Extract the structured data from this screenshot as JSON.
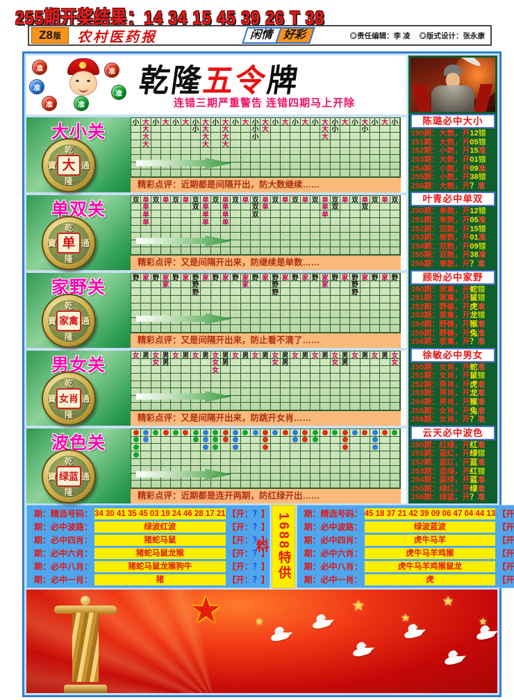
{
  "palette": {
    "red_chars": "大单家女",
    "dot_red": "#e03010",
    "dot_green": "#12a830",
    "dot_blue": "#2f7de0",
    "accent_blue": "#2f7fd0",
    "accent_orange": "#f9ba7c"
  },
  "top": {
    "result": "255期开奖结果：14 34 15 45 39 26 T 38"
  },
  "masthead": {
    "edition": "Z8",
    "edition_suffix": "版",
    "paper": "农村医药报",
    "ribbon_a": "闲情",
    "ribbon_b": "好彩",
    "credit1": "◎责任编辑：李 凌",
    "credit2": "◎版式设计：张永康"
  },
  "title": {
    "part1": "乾隆",
    "part2": "五令",
    "part3": "牌",
    "warning": "连错三期严重警告 连错四期马上开除",
    "ball": "准"
  },
  "coin": {
    "ring": [
      "乾",
      "寶",
      "通",
      "隆"
    ]
  },
  "sections": [
    {
      "title": "大小关",
      "coin": "大",
      "kind": "chars",
      "comment": "精彩点评：近期都是间隔开出，防大数继续……",
      "marks": [
        [
          "小",
          "大",
          "小",
          "大",
          "小",
          "大",
          "小",
          "大",
          "小",
          "大",
          "小",
          "大",
          "小",
          "大",
          "小",
          "大",
          "小",
          "大",
          "小",
          "大",
          "小",
          "大",
          "小",
          "大",
          "小",
          "大",
          "小"
        ],
        {
          "2": "大",
          "7": "小",
          "8": "大",
          "10": "大",
          "13": "小",
          "14": "大",
          "20": "大",
          "21": "小",
          "24": "小"
        },
        {
          "2": "大",
          "8": "大",
          "10": "大",
          "13": "小",
          "20": "大"
        },
        {
          "2": "大",
          "8": "大",
          "10": "大"
        }
      ]
    },
    {
      "title": "单双关",
      "coin": "单",
      "kind": "chars",
      "comment": "精彩点评：又是间隔开出来，防继续是单数……",
      "marks": [
        [
          "双",
          "单",
          "双",
          "单",
          "双",
          "单",
          "双",
          "单",
          "双",
          "单",
          "双",
          "单",
          "双",
          "单",
          "双",
          "单",
          "双",
          "单",
          "双",
          "单",
          "双",
          "单",
          "双",
          "单",
          "双",
          "单",
          "双"
        ],
        {
          "2": "单",
          "7": "双",
          "8": "单",
          "10": "单",
          "13": "双",
          "14": "单",
          "20": "单",
          "21": "双",
          "24": "双"
        },
        {
          "2": "单",
          "8": "单",
          "10": "单",
          "13": "双",
          "20": "单"
        },
        {
          "2": "单",
          "8": "单",
          "10": "单"
        }
      ]
    },
    {
      "title": "家野关",
      "coin": "家禽",
      "kind": "chars",
      "comment": "精彩点评：又是间隔开出来，防止看不清了……",
      "marks": [
        [
          "野",
          "家",
          "野",
          "家",
          "野",
          "家",
          "野",
          "家",
          "野",
          "家",
          "野",
          "家",
          "野",
          "家",
          "野",
          "家",
          "野",
          "家",
          "野",
          "家",
          "野",
          "家",
          "野",
          "家",
          "野",
          "家",
          "野"
        ],
        {
          "4": "家",
          "7": "野",
          "12": "家",
          "15": "野",
          "20": "家",
          "23": "野"
        },
        {
          "7": "野",
          "15": "野",
          "23": "野"
        }
      ]
    },
    {
      "title": "男女关",
      "coin": "女肖",
      "kind": "chars",
      "comment": "精彩点评：又是间隔开出来，防跳开女肖……",
      "marks": [
        [
          "女",
          "男",
          "女",
          "男",
          "女",
          "男",
          "女",
          "男",
          "女",
          "男",
          "女",
          "男",
          "女",
          "男",
          "女",
          "男",
          "女",
          "男",
          "女",
          "男",
          "女",
          "男",
          "女",
          "男",
          "女",
          "男",
          "女"
        ],
        {
          "3": "女",
          "4": "男",
          "9": "女",
          "10": "男",
          "15": "女",
          "16": "男",
          "21": "女",
          "22": "男",
          "27": "女"
        },
        {
          "9": "女"
        }
      ]
    },
    {
      "title": "波色关",
      "coin": "绿蓝",
      "kind": "dots",
      "comment": "精彩点评：近期都是连开两期，防红绿开出……",
      "marks": [
        [
          "R",
          "B",
          "G",
          "R",
          "G",
          "R",
          "G",
          "B",
          "G",
          "R",
          "B",
          "G",
          "B",
          "R",
          "B",
          "R",
          "B",
          "R",
          "G",
          "R",
          "G",
          "R",
          "B",
          "R",
          "B",
          "R",
          "G"
        ],
        {
          "1": "G",
          "2": "B",
          "7": "G",
          "8": "B",
          "9": "G",
          "10": "R",
          "11": "B",
          "14": "R",
          "17": "B",
          "18": "R",
          "19": "G",
          "22": "R",
          "25": "B"
        },
        {
          "1": "G",
          "8": "B",
          "9": "G",
          "11": "B",
          "14": "R",
          "22": "R",
          "25": "B"
        },
        {
          "1": "G"
        }
      ]
    }
  ],
  "sidebar": {
    "panels": [
      {
        "header": "陈璐必中大小",
        "rows": [
          {
            "pre": "250期：大数，开",
            "val": "12",
            "verdict": "错"
          },
          {
            "pre": "251期：大数，开",
            "val": "05",
            "verdict": "错"
          },
          {
            "pre": "252期：小数，开",
            "val": "15",
            "verdict": "准"
          },
          {
            "pre": "253期：大数，开",
            "val": "01",
            "verdict": "错"
          },
          {
            "pre": "254期：小数，开",
            "val": "09",
            "verdict": "准"
          },
          {
            "pre": "255期：小数，开",
            "val": "38",
            "verdict": "错"
          },
          {
            "pre": "256期：大数，开",
            "val": "？",
            "verdict": "准"
          }
        ]
      },
      {
        "header": "叶青必中单双",
        "rows": [
          {
            "pre": "250期：单数，开",
            "val": "12",
            "verdict": "错"
          },
          {
            "pre": "251期：单数，开",
            "val": "05",
            "verdict": "准"
          },
          {
            "pre": "252期：双数，开",
            "val": "15",
            "verdict": "错"
          },
          {
            "pre": "253期：单数，开",
            "val": "01",
            "verdict": "准"
          },
          {
            "pre": "254期：双数，开",
            "val": "09",
            "verdict": "错"
          },
          {
            "pre": "255期：双数，开",
            "val": "38",
            "verdict": "准"
          },
          {
            "pre": "256期：单数，开",
            "val": "？",
            "verdict": "准"
          }
        ]
      },
      {
        "header": "顾盼必中家野",
        "rows": [
          {
            "pre": "250期：家禽，开",
            "val": "蛇",
            "verdict": "错"
          },
          {
            "pre": "251期：家禽，开",
            "val": "鼠",
            "verdict": "错"
          },
          {
            "pre": "252期：野兽，开",
            "val": "虎",
            "verdict": "准"
          },
          {
            "pre": "253期：家禽，开",
            "val": "龙",
            "verdict": "错"
          },
          {
            "pre": "254期：野兽，开",
            "val": "猴",
            "verdict": "准"
          },
          {
            "pre": "255期：野兽，开",
            "val": "兔",
            "verdict": "准"
          },
          {
            "pre": "256期：家禽，开",
            "val": "？",
            "verdict": "准"
          }
        ]
      },
      {
        "header": "徐敏必中男女",
        "rows": [
          {
            "pre": "250期：女肖，开",
            "val": "蛇",
            "verdict": "准"
          },
          {
            "pre": "251期：女肖，开",
            "val": "鼠",
            "verdict": "错"
          },
          {
            "pre": "252期：男肖，开",
            "val": "虎",
            "verdict": "准"
          },
          {
            "pre": "253期：男肖，开",
            "val": "龙",
            "verdict": "准"
          },
          {
            "pre": "254期：男肖，开",
            "val": "猴",
            "verdict": "准"
          },
          {
            "pre": "255期：女肖，开",
            "val": "兔",
            "verdict": "准"
          },
          {
            "pre": "256期：女肖，开",
            "val": "？",
            "verdict": "准"
          }
        ]
      },
      {
        "header": "云天必中波色",
        "rows": [
          {
            "pre": "250期：红绿，开",
            "val": "红",
            "verdict": "准"
          },
          {
            "pre": "251期：蓝红，开",
            "val": "绿",
            "verdict": "错"
          },
          {
            "pre": "252期：蓝红，开",
            "val": "蓝",
            "verdict": "准"
          },
          {
            "pre": "253期：蓝绿，开",
            "val": "红",
            "verdict": "错"
          },
          {
            "pre": "254期：蓝绿，开",
            "val": "蓝",
            "verdict": "准"
          },
          {
            "pre": "255期：绿红，开",
            "val": "绿",
            "verdict": "准"
          },
          {
            "pre": "256期：绿蓝，开",
            "val": "？",
            "verdict": "准"
          }
        ]
      }
    ]
  },
  "bottom": {
    "strip": "1688特供料",
    "open_pre": "【开：",
    "open_q": "？",
    "open_close": "】",
    "tables": [
      {
        "rows": [
          {
            "label": "期：精选号码：",
            "value": "34 30 41 35 45 03 19 24 46 28 17 21"
          },
          {
            "label": "期：必中波路：",
            "value": "绿波红波"
          },
          {
            "label": "期：必中四肖：",
            "value": "猪蛇马鼠"
          },
          {
            "label": "期：必中六肖：",
            "value": "猪蛇马鼠龙猴"
          },
          {
            "label": "期：必中八肖：",
            "value": "猪蛇马鼠龙猴狗牛"
          },
          {
            "label": "期：必中一肖：",
            "value": "猪"
          }
        ]
      },
      {
        "rows": [
          {
            "label": "期：精选号码：",
            "value": "45 18 37 21 42 39 09 06 47 04 44 13"
          },
          {
            "label": "期：必中波路：",
            "value": "绿波蓝波"
          },
          {
            "label": "期：必中四肖：",
            "value": "虎牛马羊"
          },
          {
            "label": "期：必中六肖：",
            "value": "虎牛马羊鸡猴"
          },
          {
            "label": "期：必中八肖：",
            "value": "虎牛马羊鸡猴鼠龙"
          },
          {
            "label": "期：必中一肖：",
            "value": "虎"
          }
        ]
      }
    ]
  }
}
